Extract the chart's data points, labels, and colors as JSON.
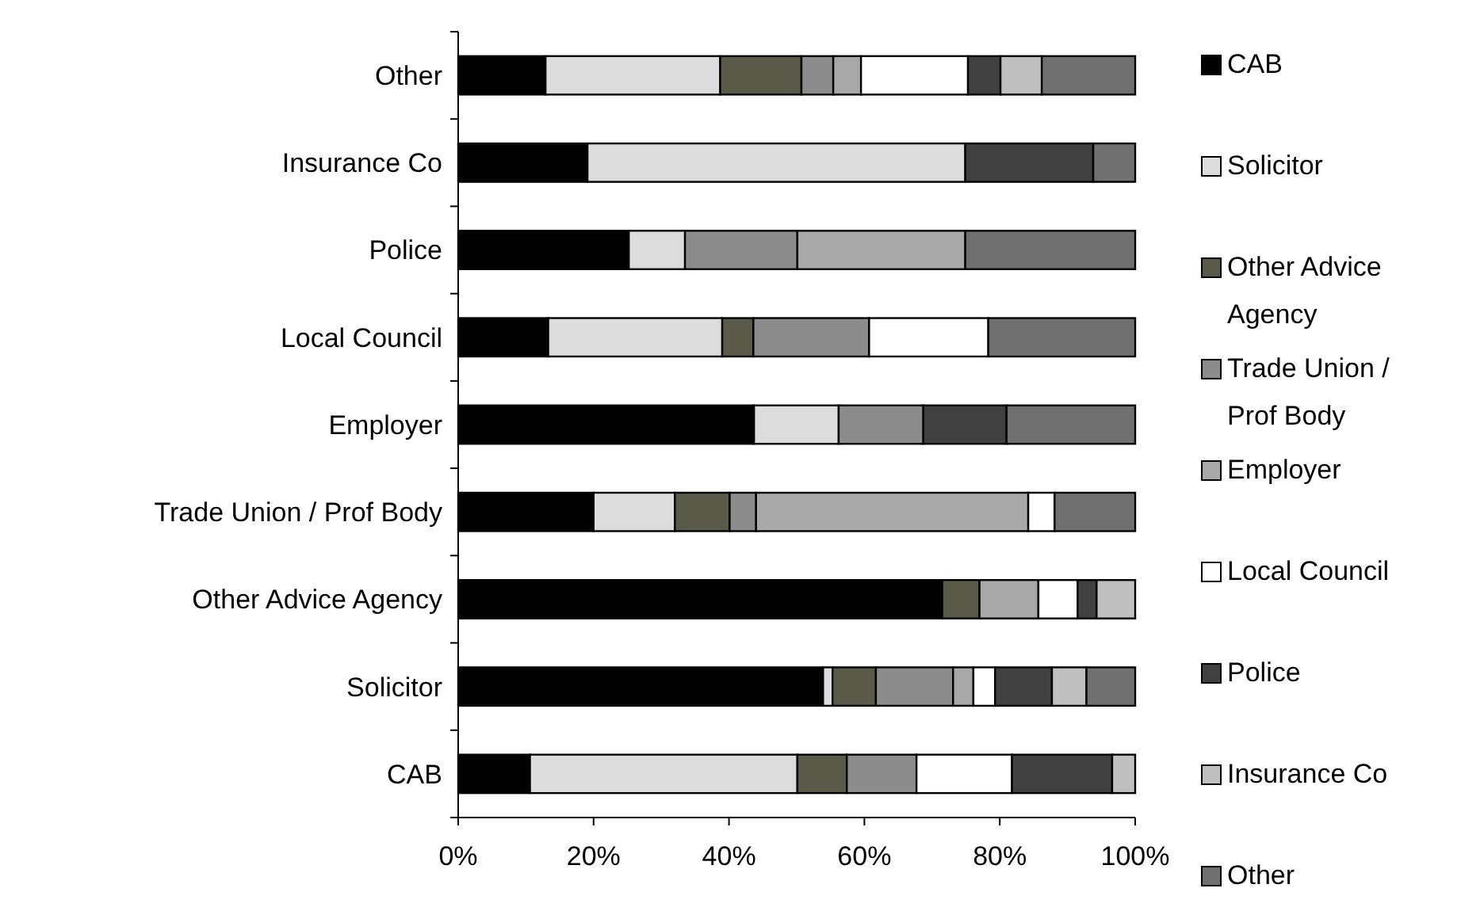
{
  "chart_data": {
    "type": "bar",
    "orientation": "horizontal",
    "stacked": true,
    "categories": [
      "Other",
      "Insurance Co",
      "Police",
      "Local Council",
      "Employer",
      "Trade Union / Prof Body",
      "Other Advice Agency",
      "Solicitor",
      "CAB"
    ],
    "series": [
      {
        "name": "CAB",
        "color": "#000000",
        "values": [
          12.9,
          19.1,
          25.2,
          13.3,
          43.7,
          20.0,
          71.5,
          53.9,
          10.6
        ]
      },
      {
        "name": "Solicitor",
        "color": "#dcdcdc",
        "values": [
          25.8,
          55.8,
          8.3,
          25.7,
          12.5,
          12.0,
          0,
          1.4,
          39.5
        ]
      },
      {
        "name": "Other Advice Agency",
        "color": "#5a5a48",
        "values": [
          12.0,
          0,
          0,
          4.6,
          0,
          8.1,
          5.5,
          6.4,
          7.3
        ]
      },
      {
        "name": "Trade Union / Prof Body",
        "color": "#8c8c8c",
        "values": [
          4.7,
          0,
          16.6,
          17.1,
          12.5,
          3.9,
          0,
          11.4,
          10.3
        ]
      },
      {
        "name": "Employer",
        "color": "#a8a8a8",
        "values": [
          4.1,
          0,
          24.8,
          0,
          0,
          40.2,
          8.7,
          3.0,
          0
        ]
      },
      {
        "name": "Local Council",
        "color": "#ffffff",
        "values": [
          15.8,
          0,
          0,
          17.6,
          0,
          3.9,
          5.8,
          3.2,
          14.1
        ]
      },
      {
        "name": "Police",
        "color": "#404040",
        "values": [
          4.8,
          18.9,
          0,
          0,
          12.3,
          0,
          2.8,
          8.4,
          14.8
        ]
      },
      {
        "name": "Insurance Co",
        "color": "#c0c0c0",
        "values": [
          6.1,
          0,
          0,
          0,
          0,
          0,
          5.7,
          5.1,
          3.4
        ]
      },
      {
        "name": "Other",
        "color": "#707070",
        "values": [
          13.8,
          6.2,
          25.1,
          21.7,
          19.0,
          11.9,
          0,
          7.2,
          0
        ]
      }
    ],
    "xlim": [
      0,
      100
    ],
    "xticks": [
      {
        "value": 0,
        "label": "0%"
      },
      {
        "value": 20,
        "label": "20%"
      },
      {
        "value": 40,
        "label": "40%"
      },
      {
        "value": 60,
        "label": "60%"
      },
      {
        "value": 80,
        "label": "80%"
      },
      {
        "value": 100,
        "label": "100%"
      }
    ],
    "grid": false,
    "legend": "right"
  }
}
